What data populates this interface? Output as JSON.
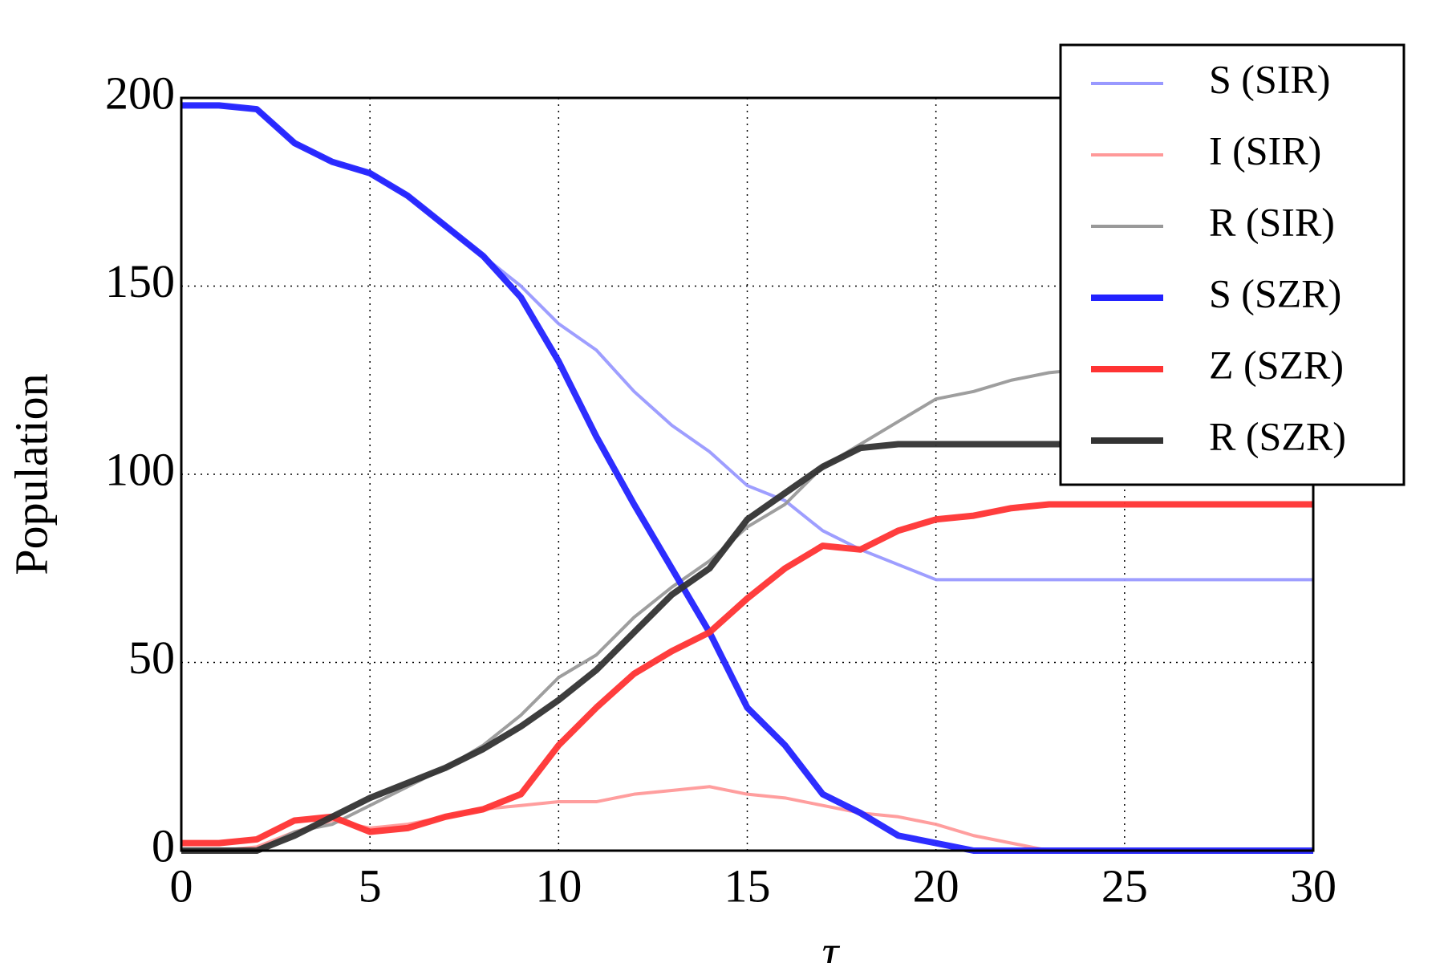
{
  "chart_data": {
    "type": "line",
    "xlabel": "τ",
    "ylabel": "Population",
    "x": [
      0,
      1,
      2,
      3,
      4,
      5,
      6,
      7,
      8,
      9,
      10,
      11,
      12,
      13,
      14,
      15,
      16,
      17,
      18,
      19,
      20,
      21,
      22,
      23,
      24,
      25,
      26,
      27,
      28,
      29,
      30
    ],
    "series": [
      {
        "name": "S (SIR)",
        "color": "#9999ff",
        "width": 4,
        "values": [
          198,
          198,
          197,
          188,
          183,
          180,
          174,
          166,
          158,
          150,
          140,
          133,
          122,
          113,
          106,
          97,
          93,
          85,
          80,
          76,
          72,
          72,
          72,
          72,
          72,
          72,
          72,
          72,
          72,
          72,
          72
        ]
      },
      {
        "name": "I (SIR)",
        "color": "#ff9999",
        "width": 4,
        "values": [
          0,
          0,
          1,
          5,
          8,
          6,
          7,
          9,
          11,
          12,
          13,
          13,
          15,
          16,
          17,
          15,
          14,
          12,
          10,
          9,
          7,
          4,
          2,
          0,
          0,
          0,
          0,
          0,
          0,
          0,
          0
        ]
      },
      {
        "name": "R (SIR)",
        "color": "#999999",
        "width": 4,
        "values": [
          0,
          0,
          0,
          5,
          7,
          12,
          17,
          22,
          28,
          36,
          46,
          52,
          62,
          70,
          77,
          86,
          92,
          102,
          108,
          114,
          120,
          122,
          125,
          127,
          128,
          128,
          128,
          128,
          128,
          128,
          128
        ]
      },
      {
        "name": "S (SZR)",
        "color": "#2222ff",
        "width": 8,
        "values": [
          198,
          198,
          197,
          188,
          183,
          180,
          174,
          166,
          158,
          147,
          130,
          110,
          92,
          75,
          58,
          38,
          28,
          15,
          10,
          4,
          2,
          0,
          0,
          0,
          0,
          0,
          0,
          0,
          0,
          0,
          0
        ]
      },
      {
        "name": "Z (SZR)",
        "color": "#ff3333",
        "width": 8,
        "values": [
          2,
          2,
          3,
          8,
          9,
          5,
          6,
          9,
          11,
          15,
          28,
          38,
          47,
          53,
          58,
          67,
          75,
          81,
          80,
          85,
          88,
          89,
          91,
          92,
          92,
          92,
          92,
          92,
          92,
          92,
          92
        ]
      },
      {
        "name": "R (SZR)",
        "color": "#333333",
        "width": 8,
        "values": [
          0,
          0,
          0,
          4,
          9,
          14,
          18,
          22,
          27,
          33,
          40,
          48,
          58,
          68,
          75,
          88,
          95,
          102,
          107,
          108,
          108,
          108,
          108,
          108,
          108,
          108,
          108,
          108,
          108,
          108,
          108
        ]
      }
    ],
    "xlim": [
      0,
      30
    ],
    "xticks": [
      0,
      5,
      10,
      15,
      20,
      25,
      30
    ],
    "ylim": [
      0,
      200
    ],
    "yticks": [
      0,
      50,
      100,
      150,
      200
    ],
    "grid": true,
    "legend": "upper right"
  }
}
